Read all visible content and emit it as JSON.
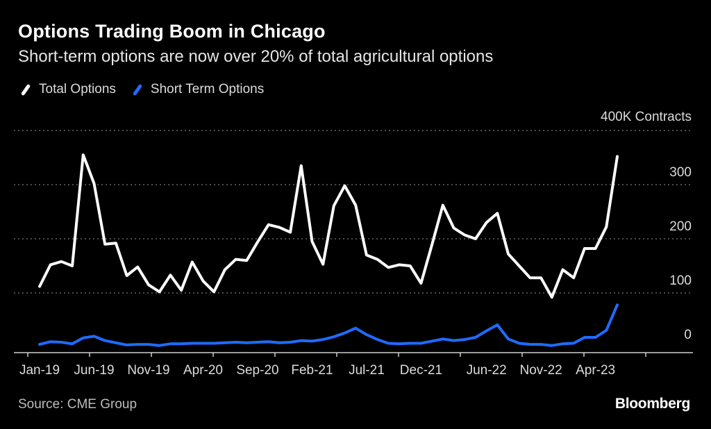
{
  "title": "Options Trading Boom in Chicago",
  "subtitle": "Short-term options are now over 20% of total agricultural options",
  "source": "Source: CME Group",
  "brand": "Bloomberg",
  "colors": {
    "background": "#000000",
    "total": "#ffffff",
    "short": "#1f6bff",
    "grid": "#7a7a7a",
    "text": "#dcdcdc"
  },
  "chart_data": {
    "type": "line",
    "title": "Options Trading Boom in Chicago",
    "subtitle": "Short-term options are now over 20% of total agricultural options",
    "ylabel": "400K Contracts",
    "ylim": [
      0,
      400
    ],
    "yticks": [
      0,
      100,
      200,
      300
    ],
    "y_tick_labels": [
      "0",
      "100",
      "200",
      "300"
    ],
    "y_top_label": "400K Contracts",
    "x_tick_labels": [
      "Jan-19",
      "Jun-19",
      "Nov-19",
      "Apr-20",
      "Sep-20",
      "Feb-21",
      "Jul-21",
      "Dec-21",
      "Jun-22",
      "Nov-22",
      "Apr-23"
    ],
    "x_tick_index": [
      0,
      5,
      10,
      15,
      20,
      25,
      30,
      35,
      41,
      46,
      51
    ],
    "grid": true,
    "legend": "top-left",
    "series": [
      {
        "name": "Total Options",
        "color": "#ffffff",
        "values": [
          112,
          152,
          158,
          150,
          355,
          302,
          190,
          192,
          132,
          148,
          115,
          102,
          133,
          105,
          157,
          122,
          102,
          143,
          162,
          160,
          194,
          226,
          221,
          212,
          335,
          195,
          153,
          261,
          298,
          262,
          170,
          162,
          147,
          152,
          150,
          118,
          189,
          262,
          220,
          207,
          200,
          230,
          247,
          172,
          150,
          128,
          128,
          92,
          143,
          128,
          182,
          182,
          222,
          352
        ]
      },
      {
        "name": "Short Term Options",
        "color": "#1f6bff",
        "values": [
          5,
          10,
          9,
          6,
          17,
          20,
          12,
          8,
          4,
          5,
          5,
          3,
          6,
          6,
          7,
          7,
          7,
          8,
          9,
          8,
          9,
          10,
          8,
          9,
          12,
          11,
          14,
          19,
          26,
          35,
          23,
          14,
          7,
          6,
          7,
          7,
          11,
          15,
          12,
          14,
          18,
          30,
          41,
          15,
          7,
          5,
          5,
          3,
          6,
          7,
          18,
          18,
          31,
          78
        ]
      }
    ]
  }
}
